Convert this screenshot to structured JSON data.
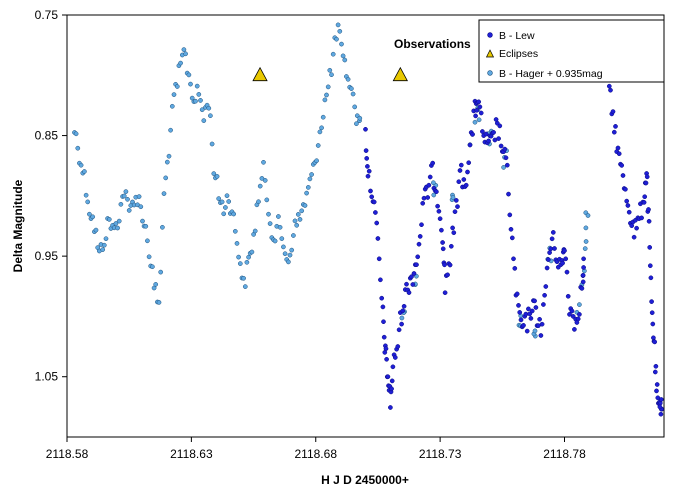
{
  "chart_data": {
    "type": "scatter",
    "xlabel": "H J D 2450000+",
    "ylabel": "Delta Magnitude",
    "xlim": [
      2118.58,
      2118.82
    ],
    "ylim": [
      0.75,
      1.1
    ],
    "y_inverted": true,
    "x_ticks": [
      "2118.58",
      "2118.63",
      "2118.68",
      "2118.73",
      "2118.78"
    ],
    "x_tick_values": [
      2118.58,
      2118.63,
      2118.68,
      2118.73,
      2118.78
    ],
    "y_ticks": [
      "0.75",
      "0.85",
      "0.95",
      "1.05"
    ],
    "y_tick_values": [
      0.75,
      0.85,
      0.95,
      1.05
    ],
    "grid": false,
    "legend_title": "Observations",
    "legend_position": "top-right",
    "colors": {
      "lew": "#1f1fd6",
      "hager": "#5fa8e0",
      "hager_edge": "#1c4f7a",
      "eclipse": "#e8c800"
    },
    "series": [
      {
        "name": "B - Lew",
        "marker": "circle",
        "anchors": [
          [
            2118.7,
            0.848
          ],
          [
            2118.701,
            0.88
          ],
          [
            2118.703,
            0.9
          ],
          [
            2118.705,
            0.94
          ],
          [
            2118.707,
            1.0
          ],
          [
            2118.708,
            1.03
          ],
          [
            2118.709,
            1.05
          ],
          [
            2118.71,
            1.07
          ],
          [
            2118.711,
            1.045
          ],
          [
            2118.713,
            1.02
          ],
          [
            2118.715,
            0.99
          ],
          [
            2118.717,
            0.975
          ],
          [
            2118.719,
            0.965
          ],
          [
            2118.721,
            0.95
          ],
          [
            2118.723,
            0.91
          ],
          [
            2118.725,
            0.895
          ],
          [
            2118.727,
            0.88
          ],
          [
            2118.729,
            0.9
          ],
          [
            2118.731,
            0.93
          ],
          [
            2118.732,
            0.975
          ],
          [
            2118.734,
            0.95
          ],
          [
            2118.736,
            0.92
          ],
          [
            2118.738,
            0.88
          ],
          [
            2118.74,
            0.89
          ],
          [
            2118.742,
            0.86
          ],
          [
            2118.744,
            0.83
          ],
          [
            2118.745,
            0.82
          ],
          [
            2118.747,
            0.845
          ],
          [
            2118.749,
            0.86
          ],
          [
            2118.751,
            0.855
          ],
          [
            2118.753,
            0.84
          ],
          [
            2118.755,
            0.86
          ],
          [
            2118.757,
            0.88
          ],
          [
            2118.759,
            0.94
          ],
          [
            2118.761,
            0.99
          ],
          [
            2118.763,
            1.01
          ],
          [
            2118.765,
            1.005
          ],
          [
            2118.767,
            0.99
          ],
          [
            2118.769,
            1.0
          ],
          [
            2118.771,
            1.01
          ],
          [
            2118.773,
            0.96
          ],
          [
            2118.775,
            0.935
          ],
          [
            2118.777,
            0.95
          ],
          [
            2118.779,
            0.96
          ],
          [
            2118.78,
            0.94
          ],
          [
            2118.782,
            0.99
          ],
          [
            2118.784,
            1.005
          ],
          [
            2118.786,
            0.99
          ],
          [
            2118.788,
            0.96
          ],
          [
            2118.798,
            0.815
          ],
          [
            2118.8,
            0.84
          ],
          [
            2118.802,
            0.87
          ],
          [
            2118.804,
            0.89
          ],
          [
            2118.806,
            0.91
          ],
          [
            2118.808,
            0.93
          ],
          [
            2118.81,
            0.92
          ],
          [
            2118.812,
            0.9
          ],
          [
            2118.813,
            0.88
          ],
          [
            2118.814,
            0.93
          ],
          [
            2118.815,
            0.99
          ],
          [
            2118.816,
            1.02
          ],
          [
            2118.817,
            1.06
          ],
          [
            2118.818,
            1.08
          ],
          [
            2118.819,
            1.07
          ]
        ],
        "points_per_anchor": 4,
        "scatter_y": 0.009
      },
      {
        "name": "Eclipses",
        "marker": "triangle",
        "points": [
          [
            2118.6576,
            0.7995
          ],
          [
            2118.714,
            0.7995
          ]
        ]
      },
      {
        "name": "B - Hager + 0.935mag",
        "marker": "circle",
        "anchors": [
          [
            2118.583,
            0.845
          ],
          [
            2118.585,
            0.865
          ],
          [
            2118.587,
            0.885
          ],
          [
            2118.589,
            0.91
          ],
          [
            2118.591,
            0.925
          ],
          [
            2118.593,
            0.95
          ],
          [
            2118.595,
            0.935
          ],
          [
            2118.597,
            0.92
          ],
          [
            2118.599,
            0.93
          ],
          [
            2118.601,
            0.915
          ],
          [
            2118.603,
            0.895
          ],
          [
            2118.605,
            0.915
          ],
          [
            2118.607,
            0.9
          ],
          [
            2118.609,
            0.905
          ],
          [
            2118.611,
            0.92
          ],
          [
            2118.613,
            0.945
          ],
          [
            2118.615,
            0.975
          ],
          [
            2118.617,
            0.99
          ],
          [
            2118.619,
            0.9
          ],
          [
            2118.621,
            0.86
          ],
          [
            2118.623,
            0.82
          ],
          [
            2118.625,
            0.8
          ],
          [
            2118.627,
            0.78
          ],
          [
            2118.629,
            0.8
          ],
          [
            2118.631,
            0.82
          ],
          [
            2118.633,
            0.815
          ],
          [
            2118.635,
            0.835
          ],
          [
            2118.637,
            0.82
          ],
          [
            2118.639,
            0.875
          ],
          [
            2118.641,
            0.9
          ],
          [
            2118.643,
            0.91
          ],
          [
            2118.645,
            0.9
          ],
          [
            2118.647,
            0.92
          ],
          [
            2118.649,
            0.945
          ],
          [
            2118.651,
            0.975
          ],
          [
            2118.653,
            0.955
          ],
          [
            2118.655,
            0.935
          ],
          [
            2118.657,
            0.9
          ],
          [
            2118.659,
            0.88
          ],
          [
            2118.661,
            0.91
          ],
          [
            2118.663,
            0.935
          ],
          [
            2118.665,
            0.925
          ],
          [
            2118.667,
            0.94
          ],
          [
            2118.669,
            0.955
          ],
          [
            2118.671,
            0.93
          ],
          [
            2118.673,
            0.92
          ],
          [
            2118.675,
            0.91
          ],
          [
            2118.677,
            0.895
          ],
          [
            2118.679,
            0.88
          ],
          [
            2118.681,
            0.855
          ],
          [
            2118.683,
            0.83
          ],
          [
            2118.685,
            0.81
          ],
          [
            2118.687,
            0.785
          ],
          [
            2118.689,
            0.76
          ],
          [
            2118.691,
            0.79
          ],
          [
            2118.693,
            0.8
          ],
          [
            2118.695,
            0.82
          ],
          [
            2118.697,
            0.84
          ],
          [
            2118.715,
            1.0
          ],
          [
            2118.72,
            0.97
          ],
          [
            2118.728,
            0.895
          ],
          [
            2118.735,
            0.9
          ],
          [
            2118.742,
            0.86
          ],
          [
            2118.745,
            0.83
          ],
          [
            2118.75,
            0.85
          ],
          [
            2118.756,
            0.87
          ],
          [
            2118.762,
            1.0
          ],
          [
            2118.768,
            1.01
          ],
          [
            2118.774,
            0.95
          ],
          [
            2118.785,
            1.0
          ],
          [
            2118.788,
            0.955
          ],
          [
            2118.789,
            0.92
          ]
        ],
        "points_per_anchor": 3,
        "scatter_y": 0.008
      }
    ]
  }
}
